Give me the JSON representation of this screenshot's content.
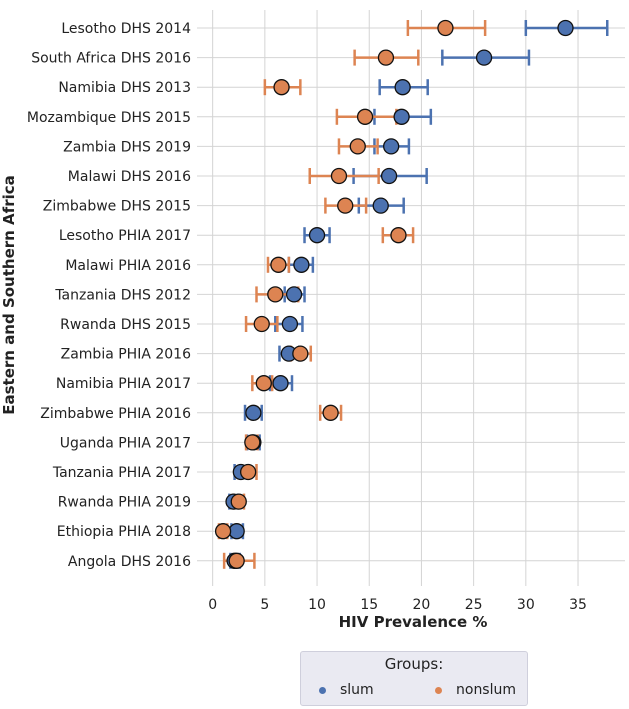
{
  "chart_data": {
    "type": "scatter",
    "title": "",
    "xlabel": "HIV Prevalence %",
    "ylabel": "Eastern and Southern Africa",
    "xlim": [
      -1.5,
      39.5
    ],
    "xticks": [
      0,
      5,
      10,
      15,
      20,
      25,
      30,
      35
    ],
    "grid": true,
    "categories": [
      "Lesotho DHS 2014",
      "South Africa DHS 2016",
      "Namibia DHS 2013",
      "Mozambique DHS 2015",
      "Zambia DHS 2019",
      "Malawi DHS 2016",
      "Zimbabwe DHS 2015",
      "Lesotho PHIA 2017",
      "Malawi PHIA 2016",
      "Tanzania DHS 2012",
      "Rwanda DHS 2015",
      "Zambia PHIA 2016",
      "Namibia PHIA 2017",
      "Zimbabwe PHIA 2016",
      "Uganda PHIA 2017",
      "Tanzania PHIA 2017",
      "Rwanda PHIA 2019",
      "Ethiopia PHIA 2018",
      "Angola DHS 2016"
    ],
    "series": [
      {
        "name": "slum",
        "color": "#4c72b0",
        "values": [
          33.8,
          26.0,
          18.2,
          18.1,
          17.1,
          16.9,
          16.1,
          10.0,
          8.5,
          7.8,
          7.4,
          7.3,
          6.5,
          3.9,
          3.9,
          2.7,
          2.0,
          2.3,
          2.1
        ],
        "lower": [
          30.0,
          22.0,
          16.0,
          15.5,
          15.5,
          13.5,
          14.0,
          8.8,
          7.3,
          6.9,
          6.0,
          6.4,
          5.5,
          3.1,
          3.3,
          2.1,
          1.6,
          1.8,
          1.7
        ],
        "upper": [
          37.8,
          30.3,
          20.6,
          20.9,
          18.8,
          20.5,
          18.3,
          11.2,
          9.6,
          8.8,
          8.6,
          8.3,
          7.6,
          4.7,
          4.5,
          3.3,
          2.4,
          2.9,
          2.6
        ]
      },
      {
        "name": "nonslum",
        "color": "#dd8452",
        "values": [
          22.3,
          16.6,
          6.6,
          14.6,
          13.9,
          12.1,
          12.7,
          17.8,
          6.3,
          6.0,
          4.7,
          8.4,
          4.9,
          11.3,
          3.8,
          3.4,
          2.5,
          1.0,
          2.3
        ],
        "lower": [
          18.7,
          13.6,
          5.0,
          11.9,
          12.1,
          9.3,
          10.8,
          16.3,
          5.3,
          4.2,
          3.2,
          7.5,
          3.8,
          10.3,
          3.2,
          2.7,
          2.0,
          0.6,
          1.1
        ],
        "upper": [
          26.1,
          19.7,
          8.4,
          17.6,
          15.8,
          15.9,
          14.7,
          19.2,
          7.3,
          8.2,
          6.2,
          9.4,
          5.7,
          12.3,
          4.3,
          4.2,
          3.0,
          1.4,
          4.0
        ]
      }
    ],
    "legend": {
      "title": "Groups:",
      "position": "bottom-center"
    }
  }
}
